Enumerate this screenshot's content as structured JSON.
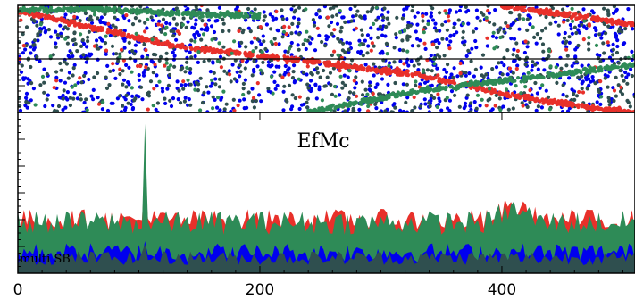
{
  "chart_data": [
    {
      "type": "scatter",
      "x_range": [
        0,
        510
      ],
      "y_range": [
        0,
        1
      ],
      "hline": 0.5,
      "series": [
        {
          "color": "#0000ee",
          "count": 900,
          "pattern": "uniform-noise"
        },
        {
          "color": "#2f4f4f",
          "count": 700,
          "pattern": "uniform-noise"
        },
        {
          "color": "#e8302a",
          "pattern": "sweep",
          "knots": [
            [
              0,
              0.95
            ],
            [
              130,
              0.62
            ],
            [
              260,
              0.45
            ],
            [
              330,
              0.35
            ],
            [
              400,
              0.18
            ],
            [
              470,
              0.05
            ],
            [
              510,
              0.0
            ]
          ],
          "second_knots": [
            [
              400,
              1.0
            ],
            [
              510,
              0.82
            ]
          ]
        },
        {
          "color": "#2e8b57",
          "pattern": "sweep",
          "knots": [
            [
              0,
              0.95
            ],
            [
              60,
              0.97
            ],
            [
              120,
              0.93
            ],
            [
              200,
              0.9
            ]
          ],
          "second_knots": [
            [
              240,
              0.0
            ],
            [
              330,
              0.2
            ],
            [
              420,
              0.32
            ],
            [
              510,
              0.45
            ]
          ]
        }
      ]
    },
    {
      "type": "area",
      "title": "EfMc",
      "x": {
        "min": 0,
        "max": 510,
        "ticks": [
          0,
          200,
          400
        ]
      },
      "y_range": [
        0,
        1
      ],
      "legend": {
        "position": "bottom-left",
        "entries": [
          "multi SB"
        ]
      },
      "spike_x": 106,
      "series": [
        {
          "color": "#e8302a",
          "level": 0.26,
          "amp": 0.14,
          "spike": 0.62
        },
        {
          "color": "#2e8b57",
          "level": 0.24,
          "amp": 0.15,
          "spike": 0.93
        },
        {
          "color": "#0000ee",
          "level": 0.07,
          "amp": 0.12,
          "spike": 0.2
        },
        {
          "color": "#2f4f4f",
          "level": 0.05,
          "amp": 0.09,
          "spike": 0.18
        }
      ]
    }
  ]
}
